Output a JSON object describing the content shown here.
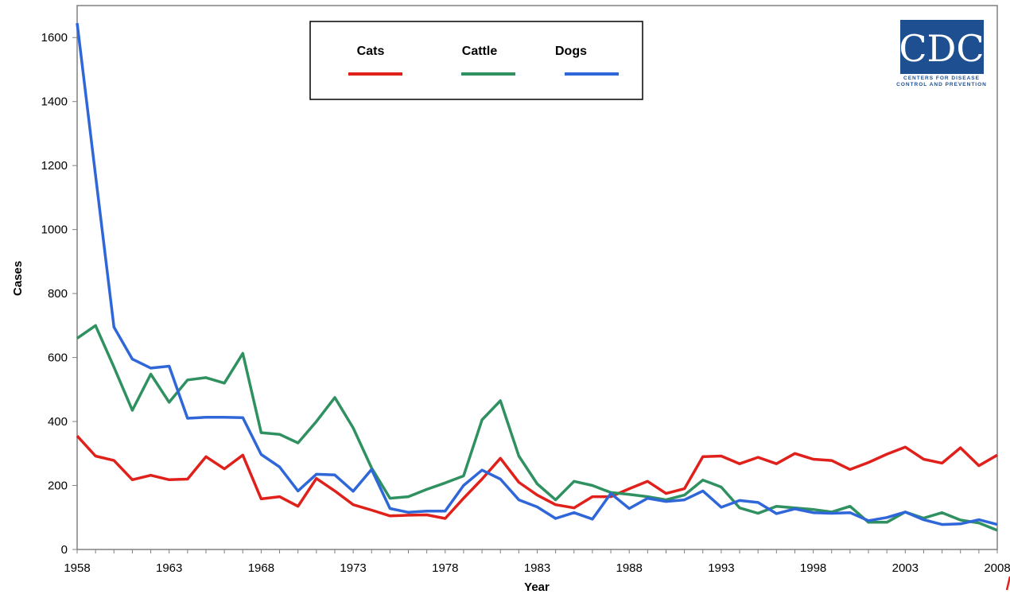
{
  "chart_data": {
    "type": "line",
    "title": "",
    "xlabel": "Year",
    "ylabel": "Cases",
    "xlim": [
      1958,
      2008
    ],
    "ylim": [
      0,
      1700
    ],
    "x_ticks": [
      1958,
      1963,
      1968,
      1973,
      1978,
      1983,
      1988,
      1993,
      1998,
      2003,
      2008
    ],
    "y_ticks": [
      0,
      200,
      400,
      600,
      800,
      1000,
      1200,
      1400,
      1600
    ],
    "grid": false,
    "legend_position": "top-center",
    "x": [
      1958,
      1959,
      1960,
      1961,
      1962,
      1963,
      1964,
      1965,
      1966,
      1967,
      1968,
      1969,
      1970,
      1971,
      1972,
      1973,
      1974,
      1975,
      1976,
      1977,
      1978,
      1979,
      1980,
      1981,
      1982,
      1983,
      1984,
      1985,
      1986,
      1987,
      1988,
      1989,
      1990,
      1991,
      1992,
      1993,
      1994,
      1995,
      1996,
      1997,
      1998,
      1999,
      2000,
      2001,
      2002,
      2003,
      2004,
      2005,
      2006,
      2007,
      2008
    ],
    "series": [
      {
        "name": "Cats",
        "color": "#e0201b",
        "values": [
          355,
          292,
          278,
          218,
          232,
          218,
          220,
          290,
          252,
          295,
          158,
          165,
          135,
          222,
          183,
          140,
          123,
          105,
          107,
          108,
          97,
          160,
          220,
          285,
          210,
          170,
          140,
          130,
          165,
          165,
          190,
          213,
          175,
          190,
          290,
          292,
          268,
          288,
          268,
          300,
          282,
          278,
          250,
          272,
          298,
          320,
          282,
          270,
          318,
          262,
          295
        ]
      },
      {
        "name": "Cattle",
        "color": "#2f9060",
        "values": [
          660,
          700,
          570,
          435,
          548,
          460,
          530,
          537,
          520,
          613,
          365,
          360,
          333,
          400,
          475,
          380,
          255,
          160,
          165,
          188,
          208,
          230,
          405,
          465,
          292,
          205,
          155,
          213,
          200,
          178,
          172,
          165,
          155,
          170,
          217,
          195,
          130,
          113,
          135,
          130,
          125,
          117,
          135,
          85,
          85,
          117,
          98,
          115,
          92,
          83,
          60
        ]
      },
      {
        "name": "Dogs",
        "color": "#2f66d8",
        "values": [
          1645,
          1170,
          695,
          595,
          567,
          573,
          410,
          413,
          413,
          412,
          297,
          258,
          183,
          235,
          233,
          182,
          250,
          128,
          116,
          120,
          120,
          200,
          248,
          220,
          155,
          133,
          97,
          115,
          95,
          175,
          128,
          160,
          150,
          155,
          183,
          132,
          153,
          147,
          112,
          127,
          115,
          113,
          115,
          90,
          100,
          117,
          93,
          78,
          80,
          93,
          78
        ]
      }
    ]
  },
  "logo": {
    "letters": "CDC",
    "line1": "Centers for Disease",
    "line2": "Control and Prevention"
  }
}
